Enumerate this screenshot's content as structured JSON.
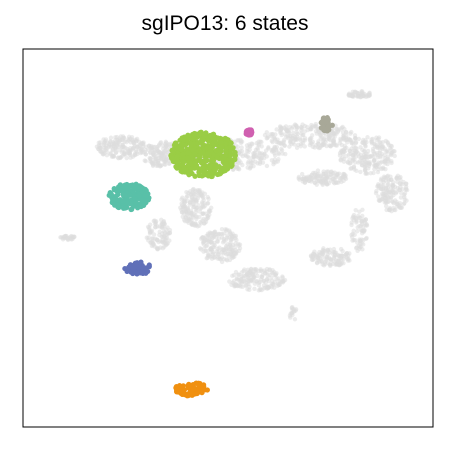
{
  "chart_data": {
    "type": "scatter",
    "title": "sgIPO13: 6 states",
    "xlabel": "",
    "ylabel": "",
    "grid": false,
    "legend": "none",
    "axes_ticks": "none",
    "xlim": [
      0,
      1
    ],
    "ylim": [
      0,
      1
    ],
    "background_color": "#dddddd",
    "series": [
      {
        "color": "#9acd45",
        "center": [
          0.44,
          0.72
        ],
        "spread": [
          0.08,
          0.06
        ]
      },
      {
        "color": "#59c0a8",
        "center": [
          0.26,
          0.61
        ],
        "spread": [
          0.05,
          0.035
        ]
      },
      {
        "color": "#6070b8",
        "center": [
          0.28,
          0.42
        ],
        "spread": [
          0.032,
          0.018
        ]
      },
      {
        "color": "#f09010",
        "center": [
          0.41,
          0.1
        ],
        "spread": [
          0.04,
          0.018
        ]
      },
      {
        "color": "#d060b0",
        "center": [
          0.55,
          0.78
        ],
        "spread": [
          0.01,
          0.008
        ]
      },
      {
        "color": "#a8a898",
        "center": [
          0.74,
          0.8
        ],
        "spread": [
          0.015,
          0.02
        ]
      }
    ]
  }
}
